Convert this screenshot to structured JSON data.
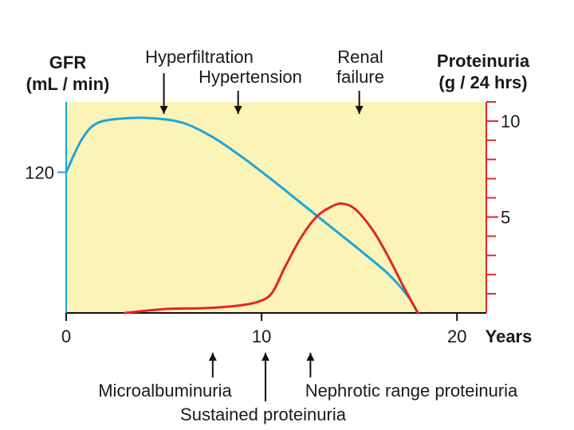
{
  "chart_data": {
    "type": "line",
    "x_unit_label": "Years",
    "x_ticks": [
      0,
      10,
      20
    ],
    "xlim": [
      0,
      21.5
    ],
    "left_axis": {
      "label_line1": "GFR",
      "label_line2": "(mL / min)",
      "ticks": [
        120
      ],
      "ylim": [
        0,
        180
      ]
    },
    "right_axis": {
      "label_line1": "Proteinuria",
      "label_line2": "(g / 24 hrs)",
      "ticks": [
        5,
        10
      ],
      "ylim": [
        0,
        11
      ],
      "minor_tick_step": 1
    },
    "series": [
      {
        "name": "GFR",
        "axis": "left",
        "color": "#1aa6dc",
        "points": [
          [
            0,
            120
          ],
          [
            0.8,
            148
          ],
          [
            1.6,
            162
          ],
          [
            3,
            166
          ],
          [
            4.5,
            166
          ],
          [
            6,
            162
          ],
          [
            7.5,
            150
          ],
          [
            9,
            133
          ],
          [
            10.5,
            114
          ],
          [
            12,
            94
          ],
          [
            13.5,
            74
          ],
          [
            15,
            54
          ],
          [
            16.5,
            33
          ],
          [
            17.5,
            14
          ],
          [
            18,
            0
          ]
        ]
      },
      {
        "name": "Proteinuria",
        "axis": "right",
        "color": "#e3242b",
        "points": [
          [
            3,
            0
          ],
          [
            5,
            0.2
          ],
          [
            7,
            0.25
          ],
          [
            8.5,
            0.35
          ],
          [
            9.7,
            0.55
          ],
          [
            10.5,
            1.0
          ],
          [
            11.2,
            2.4
          ],
          [
            12,
            3.9
          ],
          [
            12.8,
            5.0
          ],
          [
            13.5,
            5.5
          ],
          [
            14.1,
            5.7
          ],
          [
            14.8,
            5.4
          ],
          [
            15.7,
            4.3
          ],
          [
            16.5,
            2.9
          ],
          [
            17.3,
            1.3
          ],
          [
            18,
            0
          ]
        ]
      }
    ],
    "top_annotations": [
      {
        "label": "Hyperfiltration",
        "arrow_x": 5
      },
      {
        "label": "Hypertension",
        "arrow_x": 8.8
      },
      {
        "label_line1": "Renal",
        "label_line2": "failure",
        "arrow_x": 15
      }
    ],
    "bottom_annotations": [
      {
        "label": "Microalbuminuria",
        "arrow_x": 7.5
      },
      {
        "label": "Sustained proteinuria",
        "arrow_x": 10.2
      },
      {
        "label": "Nephrotic range proteinuria",
        "arrow_x": 12.5
      }
    ],
    "plot_background": "#fbf4b6",
    "left_axis_color": "#1aa6dc",
    "right_axis_color": "#e3242b"
  }
}
